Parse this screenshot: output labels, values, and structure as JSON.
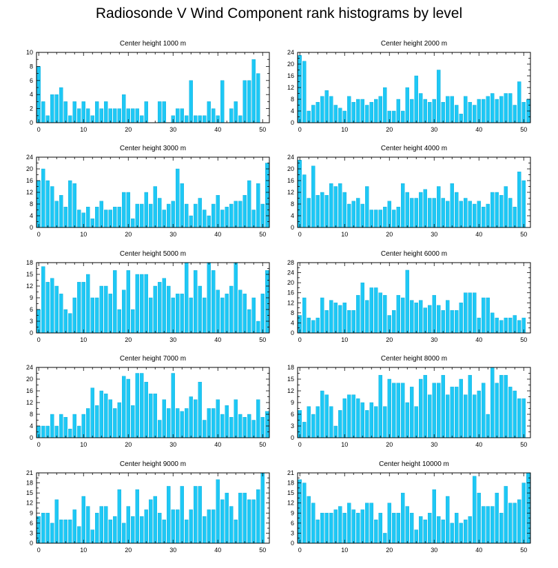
{
  "title": "Radiosonde V Wind Component rank histograms by level",
  "colors": {
    "bar": "#1ec8f5",
    "bar_edge": "#0aa8d8",
    "axis": "#000000"
  },
  "chart_data": [
    {
      "type": "bar",
      "title": "Center height 1000 m",
      "ylim": [
        0,
        10
      ],
      "yticks": [
        0,
        2,
        4,
        6,
        8,
        10
      ],
      "xlim": [
        -0.5,
        51.5
      ],
      "xticks": [
        0,
        10,
        20,
        30,
        40,
        50
      ],
      "values": [
        8,
        3,
        1,
        4,
        4,
        5,
        3,
        1,
        3,
        2,
        3,
        2,
        1,
        3,
        2,
        3,
        2,
        2,
        2,
        4,
        2,
        2,
        2,
        1,
        3,
        0,
        0,
        3,
        3,
        0,
        1,
        2,
        2,
        1,
        6,
        1,
        1,
        1,
        3,
        2,
        1,
        6,
        0,
        2,
        3,
        1,
        6,
        6,
        9,
        7,
        0,
        0
      ]
    },
    {
      "type": "bar",
      "title": "Center height 2000 m",
      "ylim": [
        0,
        24
      ],
      "yticks": [
        0,
        4,
        8,
        12,
        16,
        20,
        24
      ],
      "xlim": [
        -0.5,
        51.5
      ],
      "xticks": [
        0,
        10,
        20,
        30,
        40,
        50
      ],
      "values": [
        23,
        21,
        4,
        6,
        7,
        9,
        11,
        9,
        6,
        5,
        4,
        9,
        7,
        8,
        8,
        6,
        7,
        8,
        9,
        12,
        4,
        4,
        8,
        4,
        12,
        8,
        16,
        10,
        8,
        7,
        8,
        18,
        7,
        9,
        9,
        6,
        3,
        9,
        7,
        6,
        8,
        8,
        9,
        10,
        8,
        9,
        10,
        10,
        6,
        14,
        7,
        8
      ]
    },
    {
      "type": "bar",
      "title": "Center height 3000 m",
      "ylim": [
        0,
        24
      ],
      "yticks": [
        0,
        4,
        8,
        12,
        16,
        20,
        24
      ],
      "xlim": [
        -0.5,
        51.5
      ],
      "xticks": [
        0,
        10,
        20,
        30,
        40,
        50
      ],
      "values": [
        16,
        20,
        16,
        14,
        9,
        11,
        7,
        16,
        15,
        6,
        5,
        7,
        3,
        7,
        9,
        6,
        6,
        7,
        7,
        12,
        12,
        3,
        8,
        8,
        12,
        8,
        14,
        10,
        6,
        8,
        9,
        20,
        15,
        8,
        4,
        8,
        10,
        6,
        4,
        8,
        11,
        6,
        7,
        8,
        9,
        9,
        11,
        16,
        6,
        15,
        8,
        22
      ]
    },
    {
      "type": "bar",
      "title": "Center height 4000 m",
      "ylim": [
        0,
        24
      ],
      "yticks": [
        0,
        4,
        8,
        12,
        16,
        20,
        24
      ],
      "xlim": [
        -0.5,
        51.5
      ],
      "xticks": [
        0,
        10,
        20,
        30,
        40,
        50
      ],
      "values": [
        23,
        18,
        10,
        21,
        11,
        12,
        11,
        15,
        14,
        15,
        12,
        8,
        9,
        10,
        8,
        14,
        6,
        6,
        6,
        7,
        9,
        6,
        7,
        15,
        12,
        10,
        10,
        12,
        13,
        10,
        10,
        14,
        10,
        9,
        15,
        12,
        9,
        10,
        9,
        8,
        9,
        7,
        8,
        12,
        12,
        11,
        14,
        10,
        7,
        19,
        16
      ]
    },
    {
      "type": "bar",
      "title": "Center height 5000 m",
      "ylim": [
        0,
        18
      ],
      "yticks": [
        0,
        3,
        6,
        9,
        12,
        15,
        18
      ],
      "xlim": [
        -0.5,
        51.5
      ],
      "xticks": [
        0,
        10,
        20,
        30,
        40,
        50
      ],
      "values": [
        6,
        17,
        13,
        14,
        12,
        10,
        6,
        5,
        9,
        13,
        13,
        15,
        9,
        9,
        12,
        12,
        10,
        16,
        6,
        11,
        16,
        6,
        15,
        15,
        15,
        9,
        12,
        13,
        14,
        12,
        9,
        10,
        10,
        18,
        9,
        16,
        12,
        9,
        18,
        16,
        11,
        9,
        10,
        12,
        18,
        11,
        10,
        6,
        9,
        3,
        10,
        16
      ]
    },
    {
      "type": "bar",
      "title": "Center height 6000 m",
      "ylim": [
        0,
        28
      ],
      "yticks": [
        0,
        4,
        8,
        12,
        16,
        20,
        24,
        28
      ],
      "xlim": [
        -0.5,
        51.5
      ],
      "xticks": [
        0,
        10,
        20,
        30,
        40,
        50
      ],
      "values": [
        7,
        14,
        6,
        5,
        6,
        14,
        9,
        13,
        12,
        11,
        12,
        9,
        9,
        15,
        20,
        13,
        18,
        18,
        16,
        15,
        7,
        9,
        15,
        14,
        25,
        13,
        12,
        13,
        10,
        11,
        15,
        11,
        9,
        13,
        9,
        9,
        12,
        16,
        16,
        16,
        6,
        14,
        14,
        8,
        6,
        5,
        6,
        6,
        7,
        5,
        6
      ]
    },
    {
      "type": "bar",
      "title": "Center height 7000 m",
      "ylim": [
        0,
        24
      ],
      "yticks": [
        0,
        4,
        8,
        12,
        16,
        20,
        24
      ],
      "xlim": [
        -0.5,
        51.5
      ],
      "xticks": [
        0,
        10,
        20,
        30,
        40,
        50
      ],
      "values": [
        4,
        4,
        4,
        8,
        4,
        8,
        7,
        3,
        8,
        4,
        8,
        10,
        17,
        11,
        16,
        15,
        13,
        10,
        12,
        21,
        20,
        11,
        22,
        22,
        19,
        15,
        15,
        6,
        13,
        10,
        22,
        10,
        9,
        10,
        14,
        13,
        19,
        6,
        10,
        10,
        13,
        8,
        11,
        7,
        13,
        8,
        7,
        8,
        6,
        13,
        7,
        9
      ]
    },
    {
      "type": "bar",
      "title": "Center height 8000 m",
      "ylim": [
        0,
        18
      ],
      "yticks": [
        0,
        3,
        6,
        9,
        12,
        15,
        18
      ],
      "xlim": [
        -0.5,
        51.5
      ],
      "xticks": [
        0,
        10,
        20,
        30,
        40,
        50
      ],
      "values": [
        7,
        4,
        8,
        6,
        8,
        12,
        11,
        8,
        3,
        7,
        10,
        11,
        11,
        10,
        9,
        7,
        9,
        8,
        16,
        8,
        15,
        14,
        14,
        14,
        9,
        13,
        8,
        15,
        16,
        11,
        14,
        14,
        16,
        11,
        13,
        13,
        15,
        11,
        16,
        11,
        12,
        14,
        6,
        18,
        14,
        16,
        16,
        13,
        12,
        10,
        10
      ]
    },
    {
      "type": "bar",
      "title": "Center height 9000 m",
      "ylim": [
        0,
        21
      ],
      "yticks": [
        0,
        3,
        6,
        9,
        12,
        15,
        18,
        21
      ],
      "xlim": [
        -0.5,
        51.5
      ],
      "xticks": [
        0,
        10,
        20,
        30,
        40,
        50
      ],
      "values": [
        8,
        9,
        9,
        6,
        13,
        7,
        7,
        7,
        10,
        5,
        14,
        11,
        4,
        9,
        11,
        11,
        7,
        8,
        16,
        6,
        11,
        8,
        16,
        8,
        10,
        13,
        14,
        9,
        7,
        17,
        10,
        10,
        17,
        7,
        10,
        17,
        17,
        8,
        10,
        10,
        19,
        13,
        15,
        11,
        7,
        15,
        15,
        13,
        13,
        16,
        21
      ]
    },
    {
      "type": "bar",
      "title": "Center height 10000 m",
      "ylim": [
        0,
        21
      ],
      "yticks": [
        0,
        3,
        6,
        9,
        12,
        15,
        18,
        21
      ],
      "xlim": [
        -0.5,
        51.5
      ],
      "xticks": [
        0,
        10,
        20,
        30,
        40,
        50
      ],
      "values": [
        19,
        18,
        14,
        12,
        7,
        9,
        9,
        9,
        10,
        11,
        9,
        12,
        10,
        9,
        10,
        12,
        12,
        7,
        9,
        3,
        12,
        9,
        9,
        15,
        11,
        9,
        4,
        8,
        7,
        9,
        16,
        8,
        7,
        14,
        6,
        9,
        6,
        7,
        8,
        20,
        15,
        11,
        11,
        11,
        15,
        9,
        17,
        12,
        12,
        13,
        18,
        21
      ]
    }
  ]
}
